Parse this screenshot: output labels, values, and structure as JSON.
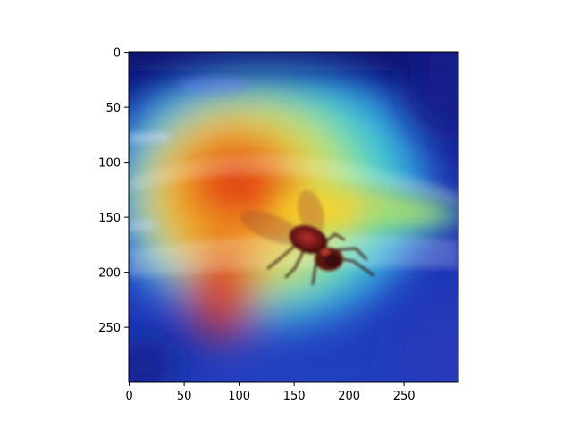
{
  "figure": {
    "description_hidden": false
  },
  "axes": {
    "x_ticks": [
      {
        "value": 0,
        "label": "0"
      },
      {
        "value": 50,
        "label": "50"
      },
      {
        "value": 100,
        "label": "100"
      },
      {
        "value": 150,
        "label": "150"
      },
      {
        "value": 200,
        "label": "200"
      },
      {
        "value": 250,
        "label": "250"
      }
    ],
    "y_ticks": [
      {
        "value": 0,
        "label": "0"
      },
      {
        "value": 50,
        "label": "50"
      },
      {
        "value": 100,
        "label": "100"
      },
      {
        "value": 150,
        "label": "150"
      },
      {
        "value": 200,
        "label": "200"
      },
      {
        "value": 250,
        "label": "250"
      }
    ],
    "x_range": [
      0,
      299
    ],
    "y_range": [
      0,
      299
    ]
  },
  "colors": {
    "background": "#ffffff",
    "heat_red": "#d7191c",
    "heat_yellow": "#ffd60a",
    "heat_cyan": "#33e0d0",
    "heat_blue": "#2a3dc8",
    "deep_navy": "#0a1470"
  }
}
